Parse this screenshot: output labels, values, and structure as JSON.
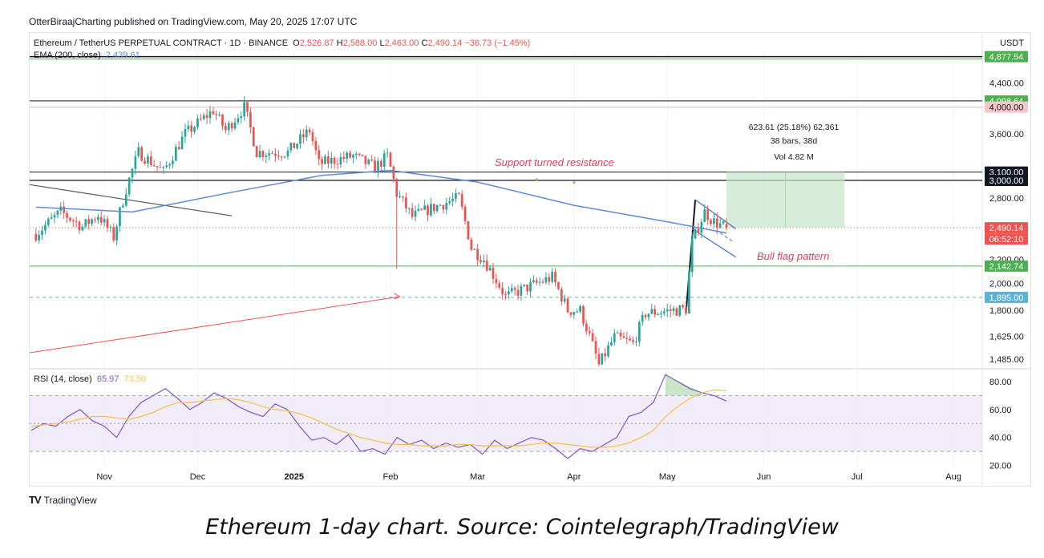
{
  "header": {
    "published": "OtterBiraajCharting published on TradingView.com, May 20, 2025 17:07 UTC"
  },
  "legend": {
    "symbol": "Ethereum / TetherUS PERPETUAL CONTRACT · 1D · BINANCE",
    "o_label": "O",
    "o": "2,526.87",
    "h_label": "H",
    "h": "2,588.00",
    "l_label": "L",
    "l": "2,463.00",
    "c_label": "C",
    "c": "2,490.14",
    "change": "−36.73 (−1.45%)",
    "ema_label": "EMA (200, close)",
    "ema_value": "2,439.61",
    "rsi_label": "RSI (14, close)",
    "rsi_value": "65.97",
    "rsi_ma": "73.50"
  },
  "currency": "USDT",
  "annotations": {
    "support": "Support turned resistance",
    "bullflag": "Bull flag pattern",
    "measure_line1": "623.61 (25.18%) 62,361",
    "measure_line2": "38 bars, 38d",
    "measure_line3": "Vol 4.82 M"
  },
  "countdown": "06:52:10",
  "footer": {
    "tv": "TradingView",
    "caption": "Ethereum 1-day chart. Source: Cointelegraph/TradingView"
  },
  "colors": {
    "up": "#26a69a",
    "down": "#ef5350",
    "ema": "#5b8bd6",
    "rsi": "#7e57c2",
    "rsi_ma": "#f5c04a",
    "green_label": "#4caf50",
    "blue_label": "#5ab3d6",
    "pink_label": "#f6c6c9",
    "black_label": "#131722",
    "red_label": "#ef5350"
  },
  "chart_data": [
    {
      "type": "candlestick",
      "title": "Ethereum / TetherUS PERPETUAL CONTRACT · 1D · BINANCE",
      "scale": "log",
      "ylim": [
        1440,
        4950
      ],
      "price_ticks": [
        "4,400.00",
        "3,600.00",
        "2,800.00",
        "2,000.00",
        "1,800.00",
        "1,625.00",
        "1,485.00"
      ],
      "time_ticks": [
        "Nov",
        "Dec",
        "2025",
        "Feb",
        "Mar",
        "Apr",
        "May",
        "Jun",
        "Jul",
        "Aug"
      ],
      "price_labels": [
        {
          "value": 4877.54,
          "text": "4,877.54",
          "color": "green_label"
        },
        {
          "value": 4098.64,
          "text": "4,098.64",
          "color": "green_label"
        },
        {
          "value": 4000.0,
          "text": "4,000.00",
          "color": "pink_label"
        },
        {
          "value": 3100.0,
          "text": "3,100.00",
          "color": "black_label"
        },
        {
          "value": 3000.0,
          "text": "3,000.00",
          "color": "black_label"
        },
        {
          "value": 2490.14,
          "text": "2,490.14",
          "color": "red_label"
        },
        {
          "value": 2142.74,
          "text": "2,142.74",
          "color": "green_label"
        },
        {
          "value": 1895.0,
          "text": "1,895.00",
          "color": "blue_label"
        }
      ],
      "anchors": [
        {
          "d": "2024-10-10",
          "p": 2430
        },
        {
          "d": "2024-10-18",
          "p": 2650
        },
        {
          "d": "2024-10-25",
          "p": 2500
        },
        {
          "d": "2024-10-30",
          "p": 2620
        },
        {
          "d": "2024-11-04",
          "p": 2400
        },
        {
          "d": "2024-11-08",
          "p": 2900
        },
        {
          "d": "2024-11-12",
          "p": 3350
        },
        {
          "d": "2024-11-20",
          "p": 3100
        },
        {
          "d": "2024-11-27",
          "p": 3600
        },
        {
          "d": "2024-12-06",
          "p": 3950
        },
        {
          "d": "2024-12-10",
          "p": 3650
        },
        {
          "d": "2024-12-16",
          "p": 4000
        },
        {
          "d": "2024-12-20",
          "p": 3350
        },
        {
          "d": "2024-12-30",
          "p": 3350
        },
        {
          "d": "2025-01-06",
          "p": 3650
        },
        {
          "d": "2025-01-09",
          "p": 3200
        },
        {
          "d": "2025-01-14",
          "p": 3250
        },
        {
          "d": "2025-01-20",
          "p": 3300
        },
        {
          "d": "2025-01-27",
          "p": 3150
        },
        {
          "d": "2025-01-31",
          "p": 3300
        },
        {
          "d": "2025-02-03",
          "p": 2850
        },
        {
          "d": "2025-02-08",
          "p": 2600
        },
        {
          "d": "2025-02-15",
          "p": 2700
        },
        {
          "d": "2025-02-23",
          "p": 2800
        },
        {
          "d": "2025-02-27",
          "p": 2300
        },
        {
          "d": "2025-03-03",
          "p": 2200
        },
        {
          "d": "2025-03-10",
          "p": 1900
        },
        {
          "d": "2025-03-20",
          "p": 2000
        },
        {
          "d": "2025-03-25",
          "p": 2050
        },
        {
          "d": "2025-03-30",
          "p": 1800
        },
        {
          "d": "2025-04-03",
          "p": 1800
        },
        {
          "d": "2025-04-09",
          "p": 1450
        },
        {
          "d": "2025-04-14",
          "p": 1620
        },
        {
          "d": "2025-04-20",
          "p": 1580
        },
        {
          "d": "2025-04-24",
          "p": 1780
        },
        {
          "d": "2025-05-07",
          "p": 1810
        },
        {
          "d": "2025-05-09",
          "p": 2350
        },
        {
          "d": "2025-05-13",
          "p": 2650
        },
        {
          "d": "2025-05-16",
          "p": 2550
        },
        {
          "d": "2025-05-20",
          "p": 2490
        }
      ],
      "ohlc_last": {
        "date": "2025-05-20",
        "open": 2526.87,
        "high": 2588.0,
        "low": 2463.0,
        "close": 2490.14
      },
      "ema_200": [
        {
          "d": "2024-10-10",
          "v": 2700
        },
        {
          "d": "2024-11-10",
          "v": 2650
        },
        {
          "d": "2024-12-10",
          "v": 2850
        },
        {
          "d": "2025-01-10",
          "v": 3060
        },
        {
          "d": "2025-02-01",
          "v": 3120
        },
        {
          "d": "2025-03-01",
          "v": 2980
        },
        {
          "d": "2025-04-01",
          "v": 2720
        },
        {
          "d": "2025-05-01",
          "v": 2550
        },
        {
          "d": "2025-05-20",
          "v": 2439.61
        }
      ]
    },
    {
      "type": "line",
      "title": "RSI (14, close)",
      "ylim": [
        18,
        88
      ],
      "y_ticks": [
        "80.00",
        "60.00",
        "40.00",
        "20.00"
      ],
      "bands": [
        70,
        50,
        30
      ],
      "series": [
        {
          "name": "RSI",
          "values": [
            45,
            50,
            48,
            55,
            60,
            52,
            48,
            40,
            55,
            65,
            70,
            75,
            68,
            60,
            65,
            72,
            68,
            62,
            58,
            55,
            64,
            60,
            48,
            38,
            40,
            35,
            42,
            30,
            32,
            28,
            40,
            35,
            38,
            32,
            36,
            33,
            35,
            28,
            38,
            32,
            36,
            40,
            38,
            32,
            25,
            32,
            30,
            35,
            40,
            55,
            58,
            65,
            85,
            80,
            75,
            72,
            70,
            66
          ]
        },
        {
          "name": "RSI MA",
          "values": [
            48,
            49,
            50,
            51,
            53,
            55,
            55,
            54,
            53,
            55,
            58,
            62,
            65,
            65,
            66,
            67,
            68,
            67,
            65,
            62,
            60,
            59,
            57,
            54,
            50,
            46,
            43,
            40,
            38,
            36,
            35,
            35,
            34,
            34,
            34,
            35,
            35,
            34,
            34,
            34,
            34,
            35,
            36,
            36,
            35,
            34,
            33,
            33,
            34,
            36,
            40,
            45,
            55,
            62,
            68,
            72,
            74,
            73.5
          ]
        }
      ]
    }
  ]
}
